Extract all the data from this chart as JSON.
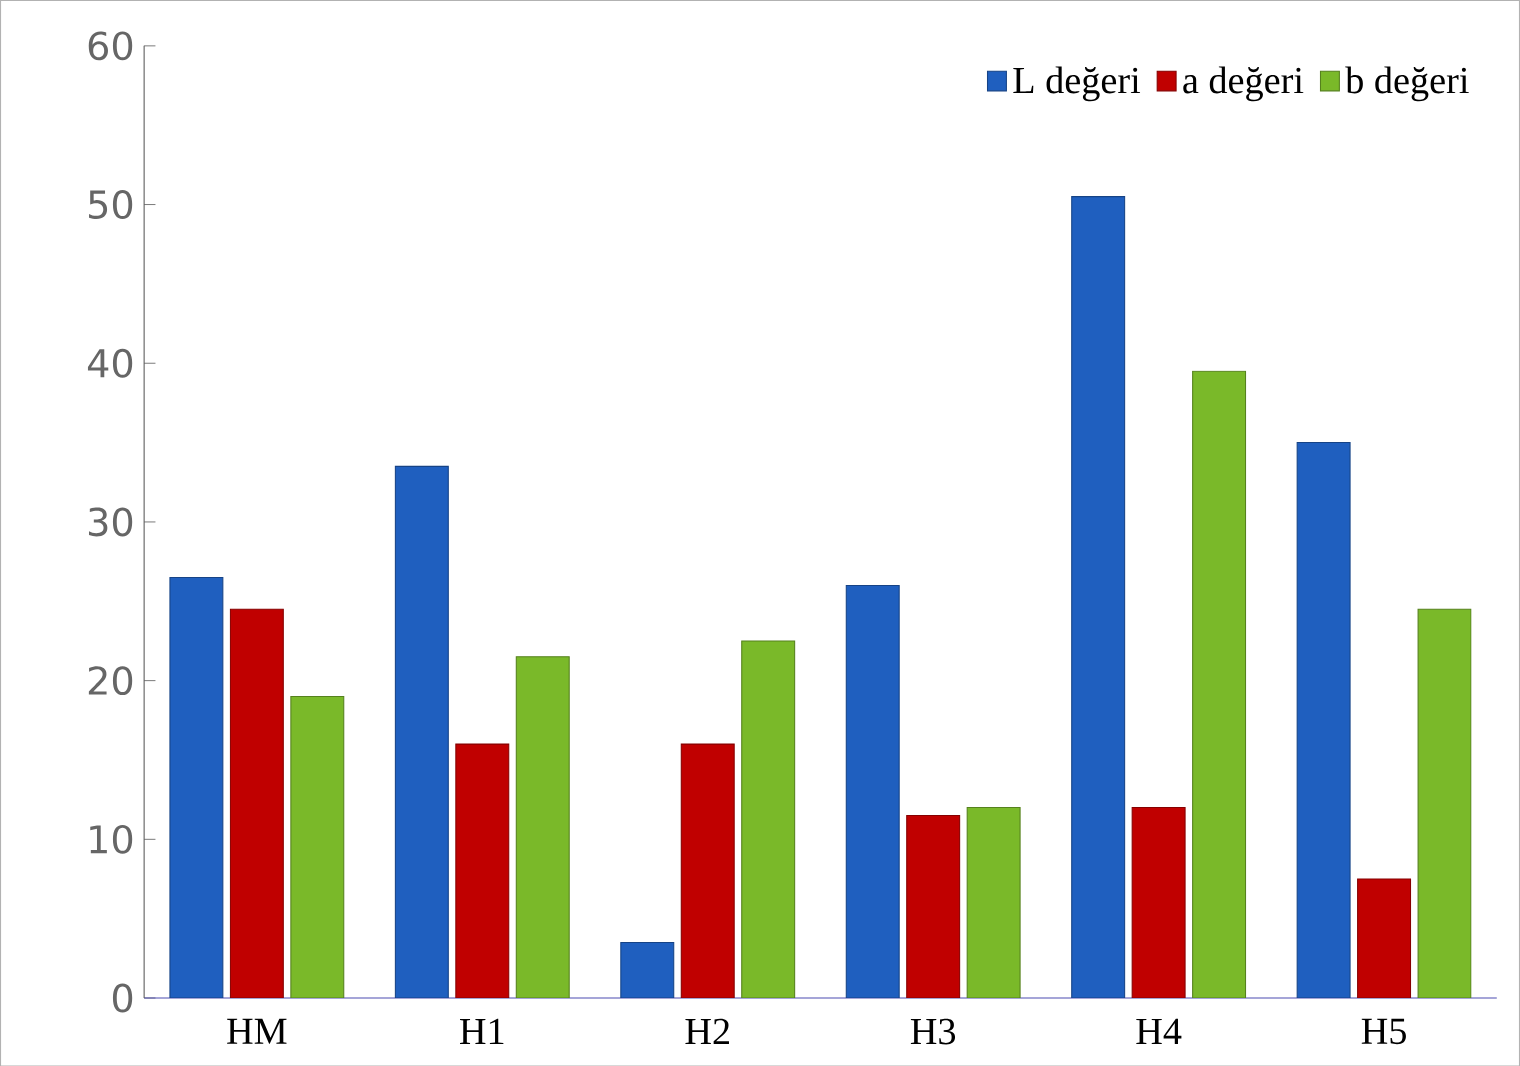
{
  "chart_data": {
    "type": "bar",
    "categories": [
      "HM",
      "H1",
      "H2",
      "H3",
      "H4",
      "H5"
    ],
    "series": [
      {
        "name": "L değeri",
        "color": "#1f5fbf",
        "values": [
          26.5,
          33.5,
          3.5,
          26,
          50.5,
          35
        ]
      },
      {
        "name": "a değeri",
        "color": "#c00000",
        "values": [
          24.5,
          16,
          16,
          11.5,
          12,
          7.5
        ]
      },
      {
        "name": "b değeri",
        "color": "#7ab929",
        "values": [
          19,
          21.5,
          22.5,
          12,
          39.5,
          24.5
        ]
      }
    ],
    "ylim": [
      0,
      60
    ],
    "yticks": [
      0,
      10,
      20,
      30,
      40,
      50,
      60
    ],
    "grid": false,
    "legend": "top right"
  }
}
